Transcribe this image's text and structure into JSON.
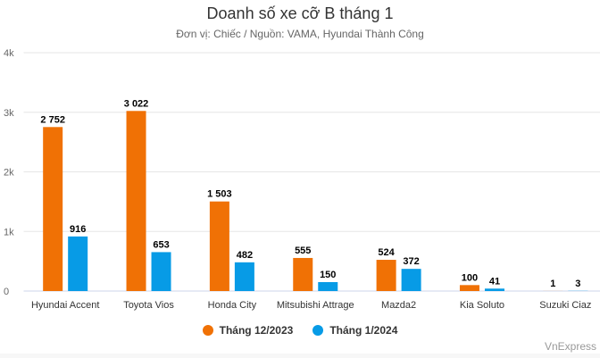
{
  "chart_data": {
    "type": "bar",
    "title": "Doanh số xe cỡ B tháng 1",
    "subtitle": "Đơn vị: Chiếc / Nguồn: VAMA, Hyundai Thành Công",
    "categories": [
      "Hyundai Accent",
      "Toyota Vios",
      "Honda City",
      "Mitsubishi Attrage",
      "Mazda2",
      "Kia Soluto",
      "Suzuki Ciaz"
    ],
    "series": [
      {
        "name": "Tháng 12/2023",
        "color": "#f07105",
        "values": [
          2752,
          3022,
          1503,
          555,
          524,
          100,
          1
        ],
        "labels": [
          "2 752",
          "3 022",
          "1 503",
          "555",
          "524",
          "100",
          "1"
        ]
      },
      {
        "name": "Tháng 1/2024",
        "color": "#079be6",
        "values": [
          916,
          653,
          482,
          150,
          372,
          41,
          3
        ],
        "labels": [
          "916",
          "653",
          "482",
          "150",
          "372",
          "41",
          "3"
        ]
      }
    ],
    "ylim": [
      0,
      4000
    ],
    "yticks": [
      0,
      1000,
      2000,
      3000,
      4000
    ],
    "ytick_labels": [
      "0",
      "1k",
      "2k",
      "3k",
      "4k"
    ],
    "grid": true,
    "legend": "bottom-center",
    "xlabel": "",
    "ylabel": ""
  },
  "credit": "VnExpress"
}
